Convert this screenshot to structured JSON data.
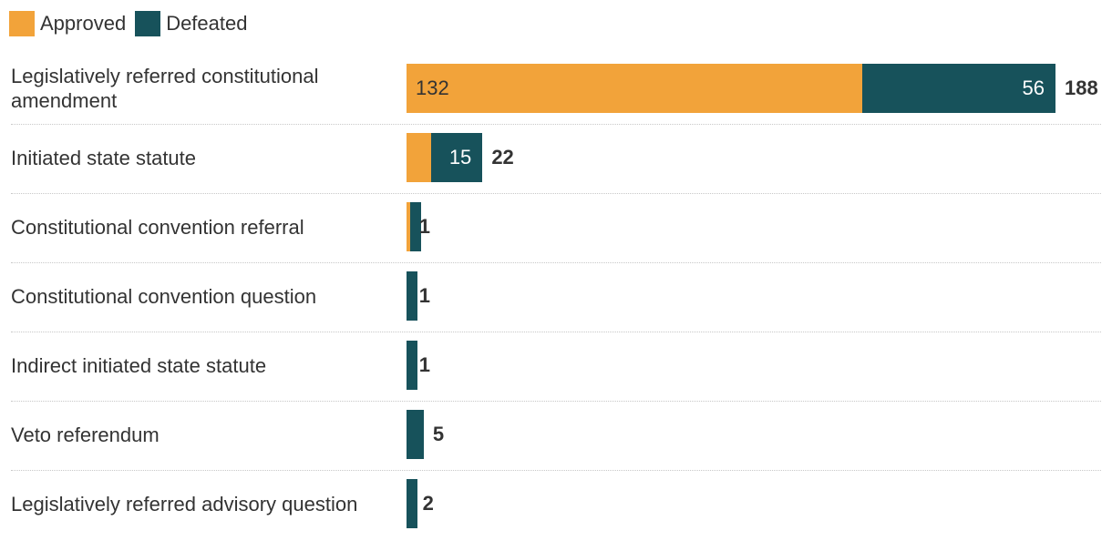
{
  "chart_data": {
    "type": "stacked-barh",
    "categories": [
      "Legislatively referred constitutional amendment",
      "Initiated state statute",
      "Constitutional convention referral",
      "Constitutional convention question",
      "Indirect initiated state statute",
      "Veto referendum",
      "Legislatively referred advisory question"
    ],
    "series": [
      {
        "name": "Approved",
        "color": "#f2a33a",
        "label_color": "#333333",
        "values": [
          132,
          7,
          1,
          0,
          0,
          0,
          0
        ]
      },
      {
        "name": "Defeated",
        "color": "#17525b",
        "label_color": "#ffffff",
        "values": [
          56,
          15,
          0,
          1,
          1,
          5,
          2
        ]
      }
    ],
    "totals": [
      188,
      22,
      1,
      1,
      1,
      5,
      2
    ],
    "legend": "top-left"
  }
}
